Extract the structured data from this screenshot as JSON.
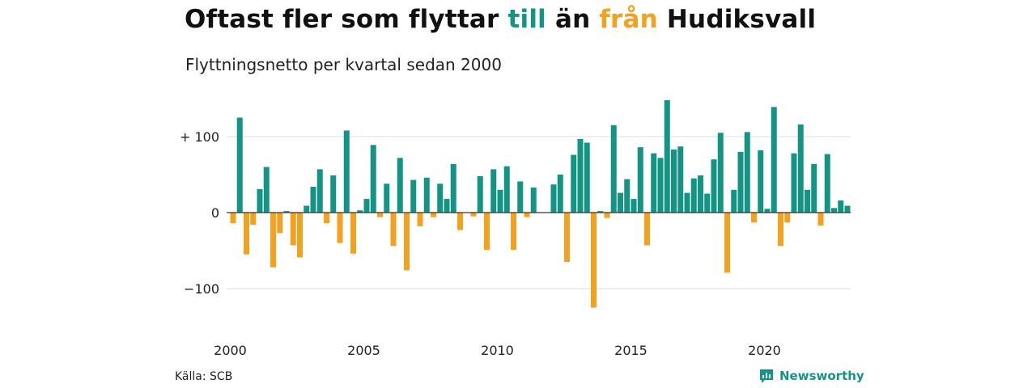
{
  "title": {
    "part1": "Oftast fler som flyttar ",
    "highlight_in": "till",
    "part2": " än ",
    "highlight_out": "från",
    "part3": " Hudiksvall"
  },
  "subtitle": "Flyttningsnetto per kvartal sedan 2000",
  "source": "Källa: SCB",
  "brand": "Newsworthy",
  "colors": {
    "positive": "#149485",
    "negative": "#f3a11f",
    "grid": "#dddddd",
    "zero": "#333333"
  },
  "chart_data": {
    "type": "bar",
    "title": "Oftast fler som flyttar till än från Hudiksvall",
    "subtitle": "Flyttningsnetto per kvartal sedan 2000",
    "ylim": [
      -155,
      155
    ],
    "yticks": [
      {
        "value": 100,
        "label": "+ 100"
      },
      {
        "value": 0,
        "label": "0"
      },
      {
        "value": -100,
        "label": "−100"
      }
    ],
    "xticks": [
      {
        "year": 2000,
        "label": "2000"
      },
      {
        "year": 2005,
        "label": "2005"
      },
      {
        "year": 2010,
        "label": "2010"
      },
      {
        "year": 2015,
        "label": "2015"
      },
      {
        "year": 2020,
        "label": "2020"
      }
    ],
    "grid": true,
    "start_year": 2000,
    "quarters_per_year": 4,
    "values": [
      -14,
      125,
      -55,
      -16,
      31,
      60,
      -72,
      -27,
      2,
      -43,
      -59,
      9,
      34,
      57,
      -14,
      49,
      -40,
      108,
      -54,
      3,
      18,
      89,
      -6,
      38,
      -44,
      72,
      -76,
      43,
      -18,
      46,
      -6,
      38,
      18,
      64,
      -23,
      0,
      -5,
      48,
      -49,
      57,
      30,
      61,
      -49,
      41,
      -6,
      33,
      0,
      0,
      37,
      50,
      -65,
      76,
      97,
      92,
      -125,
      2,
      -7,
      115,
      26,
      44,
      18,
      86,
      -43,
      78,
      72,
      148,
      83,
      87,
      26,
      45,
      49,
      25,
      70,
      105,
      -79,
      30,
      80,
      106,
      -13,
      82,
      5,
      139,
      -44,
      -13,
      78,
      116,
      30,
      64,
      -17,
      77,
      6,
      16,
      9
    ]
  }
}
